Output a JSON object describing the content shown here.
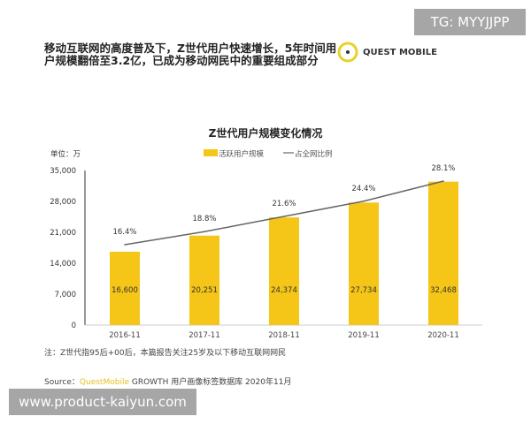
{
  "watermark_top": "TG: MYYJJPP",
  "watermark_bottom": "www.product-kaiyun.com",
  "headline": "移动互联网的高度普及下，Z世代用户快速增长，5年时间用户规模翻倍至3.2亿，已成为移动网民中的重要组成部分",
  "logo_text": "QUEST MOBILE",
  "note": "注：Z世代指95后+00后，本篇报告关注25岁及以下移动互联网网民",
  "source_prefix": "Source：",
  "source_brand": "QuestMobile",
  "source_rest": " GROWTH 用户画像标签数据库 2020年11月",
  "chart_data": {
    "type": "bar",
    "title": "Z世代用户规模变化情况",
    "unit_label": "单位：万",
    "categories": [
      "2016-11",
      "2017-11",
      "2018-11",
      "2019-11",
      "2020-11"
    ],
    "yticks": [
      "0",
      "7,000",
      "14,000",
      "21,000",
      "28,000",
      "35,000"
    ],
    "ylim": [
      0,
      35000
    ],
    "series": [
      {
        "name": "活跃用户规模",
        "type": "bar",
        "color": "#f5c518",
        "values": [
          16600,
          20251,
          24374,
          27734,
          32468
        ],
        "labels": [
          "16,600",
          "20,251",
          "24,374",
          "27,734",
          "32,468"
        ]
      },
      {
        "name": "占全网比例",
        "type": "line",
        "color": "#666666",
        "values": [
          16.4,
          18.8,
          21.6,
          24.4,
          28.1
        ],
        "labels": [
          "16.4%",
          "18.8%",
          "21.6%",
          "24.4%",
          "28.1%"
        ]
      }
    ],
    "legend": "top-center",
    "grid": false
  }
}
